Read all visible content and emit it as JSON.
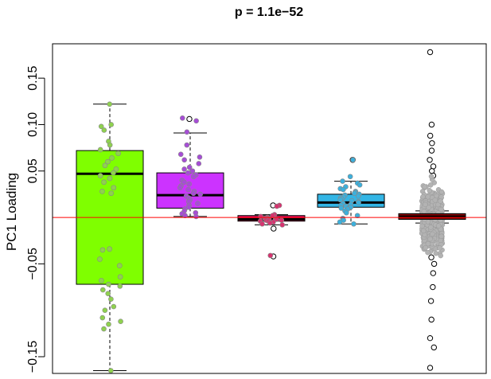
{
  "chart_data": {
    "type": "boxplot",
    "title": "p = 1.1e−52",
    "xlabel": "",
    "ylabel": "PC1 Loading",
    "ylim": [
      -0.168,
      0.187
    ],
    "yticks": [
      -0.15,
      -0.05,
      0.05,
      0.1,
      0.15
    ],
    "ytick_labels": [
      "−0.15",
      "−0.05",
      "0.05",
      "0.10",
      "0.15"
    ],
    "reference_line": {
      "y": 0.0,
      "color": "#ff0000"
    },
    "groups": [
      {
        "box_color": "#7fff00",
        "point_color": "#8fd14f",
        "q1": -0.072,
        "median": 0.047,
        "q3": 0.072,
        "whisker_low": -0.165,
        "whisker_high": 0.122,
        "outliers": [],
        "points": [
          0.122,
          0.1,
          0.098,
          0.094,
          0.082,
          0.078,
          0.073,
          0.069,
          0.064,
          0.06,
          0.056,
          0.052,
          0.048,
          0.045,
          0.042,
          0.038,
          0.032,
          0.028,
          0.026,
          -0.034,
          -0.035,
          -0.045,
          -0.052,
          -0.064,
          -0.068,
          -0.072,
          -0.074,
          -0.078,
          -0.082,
          -0.088,
          -0.096,
          -0.1,
          -0.108,
          -0.112,
          -0.115,
          -0.12,
          -0.165
        ]
      },
      {
        "box_color": "#cc33ff",
        "point_color": "#a64dd6",
        "q1": 0.01,
        "median": 0.024,
        "q3": 0.048,
        "whisker_low": 0.001,
        "whisker_high": 0.091,
        "outliers": [
          0.106
        ],
        "points": [
          0.107,
          0.104,
          0.092,
          0.078,
          0.068,
          0.065,
          0.062,
          0.058,
          0.054,
          0.052,
          0.05,
          0.048,
          0.046,
          0.044,
          0.04,
          0.038,
          0.036,
          0.034,
          0.032,
          0.03,
          0.028,
          0.026,
          0.025,
          0.023,
          0.021,
          0.019,
          0.017,
          0.015,
          0.013,
          0.011,
          0.009,
          0.007,
          0.005,
          0.004,
          0.002,
          0.001
        ]
      },
      {
        "box_color": "#e0115f",
        "point_color": "#d6336f",
        "q1": -0.004,
        "median": -0.002,
        "q3": 0.002,
        "whisker_low": -0.008,
        "whisker_high": 0.003,
        "outliers": [
          0.013,
          -0.012,
          -0.042
        ],
        "points": [
          0.013,
          0.012,
          0.003,
          0.002,
          0.001,
          0.0,
          -0.001,
          -0.001,
          -0.002,
          -0.002,
          -0.002,
          -0.003,
          -0.003,
          -0.004,
          -0.004,
          -0.005,
          -0.006,
          -0.007,
          -0.008,
          -0.041
        ]
      },
      {
        "box_color": "#33b5e5",
        "point_color": "#3cb0dc",
        "q1": 0.011,
        "median": 0.016,
        "q3": 0.025,
        "whisker_low": -0.007,
        "whisker_high": 0.039,
        "outliers": [
          0.062
        ],
        "points": [
          0.062,
          0.044,
          0.039,
          0.037,
          0.035,
          0.033,
          0.031,
          0.03,
          0.028,
          0.027,
          0.026,
          0.025,
          0.024,
          0.023,
          0.022,
          0.021,
          0.02,
          0.019,
          0.018,
          0.017,
          0.016,
          0.015,
          0.014,
          0.013,
          0.012,
          0.011,
          0.01,
          0.009,
          0.007,
          0.005,
          0.002,
          -0.001,
          -0.003,
          -0.005,
          -0.007
        ]
      },
      {
        "box_color": "#8b0000",
        "point_color": "#b3b3b3",
        "q1": -0.002,
        "median": 0.001,
        "q3": 0.004,
        "whisker_low": -0.006,
        "whisker_high": 0.007,
        "outliers": [
          0.178,
          0.1,
          0.088,
          0.08,
          0.072,
          0.062,
          0.055,
          0.05,
          0.045,
          -0.043,
          -0.05,
          -0.06,
          -0.075,
          -0.09,
          -0.11,
          -0.13,
          -0.14,
          -0.162
        ],
        "points": []
      }
    ]
  }
}
